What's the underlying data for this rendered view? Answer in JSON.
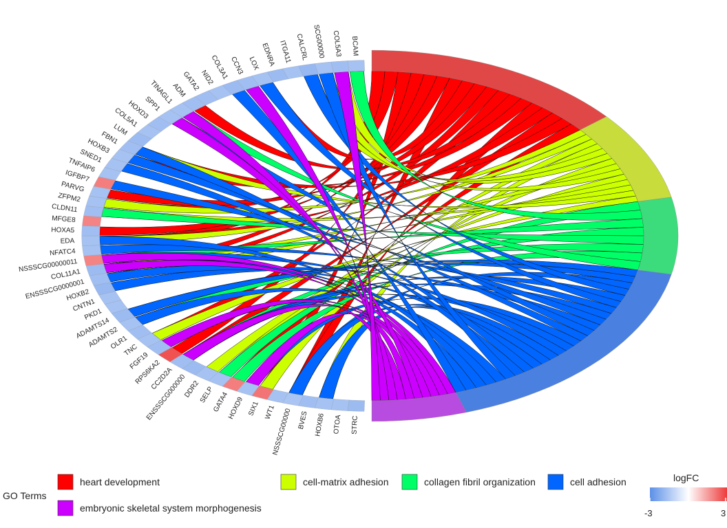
{
  "chart_data": {
    "type": "chord",
    "title": "",
    "genes_top": [
      "SCG00000",
      "COL5A3",
      "BCAM"
    ],
    "genes": [
      "STRC",
      "OTOA",
      "HOXB6",
      "BVES",
      "NSSSCG00000",
      "WT1",
      "SIX1",
      "HOXD9",
      "GATA4",
      "SELP",
      "DDR2",
      "ENSSSCG000000",
      "CC2D2A",
      "RPS6KA2",
      "FGF19",
      "TNC",
      "OLR1",
      "ADAMTS2",
      "ADAMTS14",
      "PKD1",
      "CNTN1",
      "HOXB2",
      "ENSSSCG0000001",
      "COL11A1",
      "NSSSCG00000011",
      "NFATC4",
      "EDA",
      "HOXA5",
      "MFGE8",
      "CLDN11",
      "ZFPM2",
      "PARVG",
      "IGFBP7",
      "TNFAIP6",
      "SNED1",
      "HOXB3",
      "FBN1",
      "LUM",
      "COL5A1",
      "HOXD3",
      "SPP1",
      "TINAGL1",
      "ADM",
      "GATA2",
      "NID2",
      "COL3A1",
      "CCN3",
      "LOX",
      "EDNRA",
      "ITGA11",
      "CALCRL",
      "SCG00000",
      "COL5A3",
      "BCAM"
    ],
    "gene_logfc": [
      -1.2,
      -1.0,
      -1.0,
      -1.1,
      -0.9,
      -1.0,
      1.6,
      -1.0,
      1.4,
      -1.0,
      -1.0,
      -1.2,
      -1.1,
      2.4,
      -1.1,
      -1.0,
      -1.1,
      -1.0,
      -1.2,
      -1.0,
      -1.0,
      -1.3,
      -1.1,
      -1.2,
      1.3,
      -1.0,
      -1.0,
      -1.1,
      1.3,
      -1.1,
      -1.0,
      -1.0,
      1.4,
      -1.0,
      -1.0,
      -1.0,
      -1.1,
      -1.2,
      -1.0,
      -1.1,
      -1.0,
      -1.0,
      -1.1,
      -1.1,
      -1.0,
      -1.2,
      -1.1,
      -1.0,
      -1.2,
      -1.0,
      -1.3,
      -1.0,
      -1.1,
      -1.0
    ],
    "terms": [
      {
        "name": "heart development",
        "color": "#FF0000",
        "band_color": "#E04848"
      },
      {
        "name": "cell-matrix adhesion",
        "color": "#CCFF00",
        "band_color": "#C8DC3C"
      },
      {
        "name": "collagen fibril organization",
        "color": "#00FF66",
        "band_color": "#3CDC7C"
      },
      {
        "name": "cell adhesion",
        "color": "#0066FF",
        "band_color": "#4A80E0"
      },
      {
        "name": "embryonic skeletal system morphogenesis",
        "color": "#CC00FF",
        "band_color": "#B84CE0"
      }
    ],
    "legend": {
      "title": "GO Terms",
      "placement": "bottom"
    },
    "colorbar": {
      "title": "logFC",
      "min_label": "-3",
      "max_label": "3",
      "low_color": "#5B8FE8",
      "mid_color": "#FFFFFF",
      "high_color": "#EE3B3B"
    }
  }
}
